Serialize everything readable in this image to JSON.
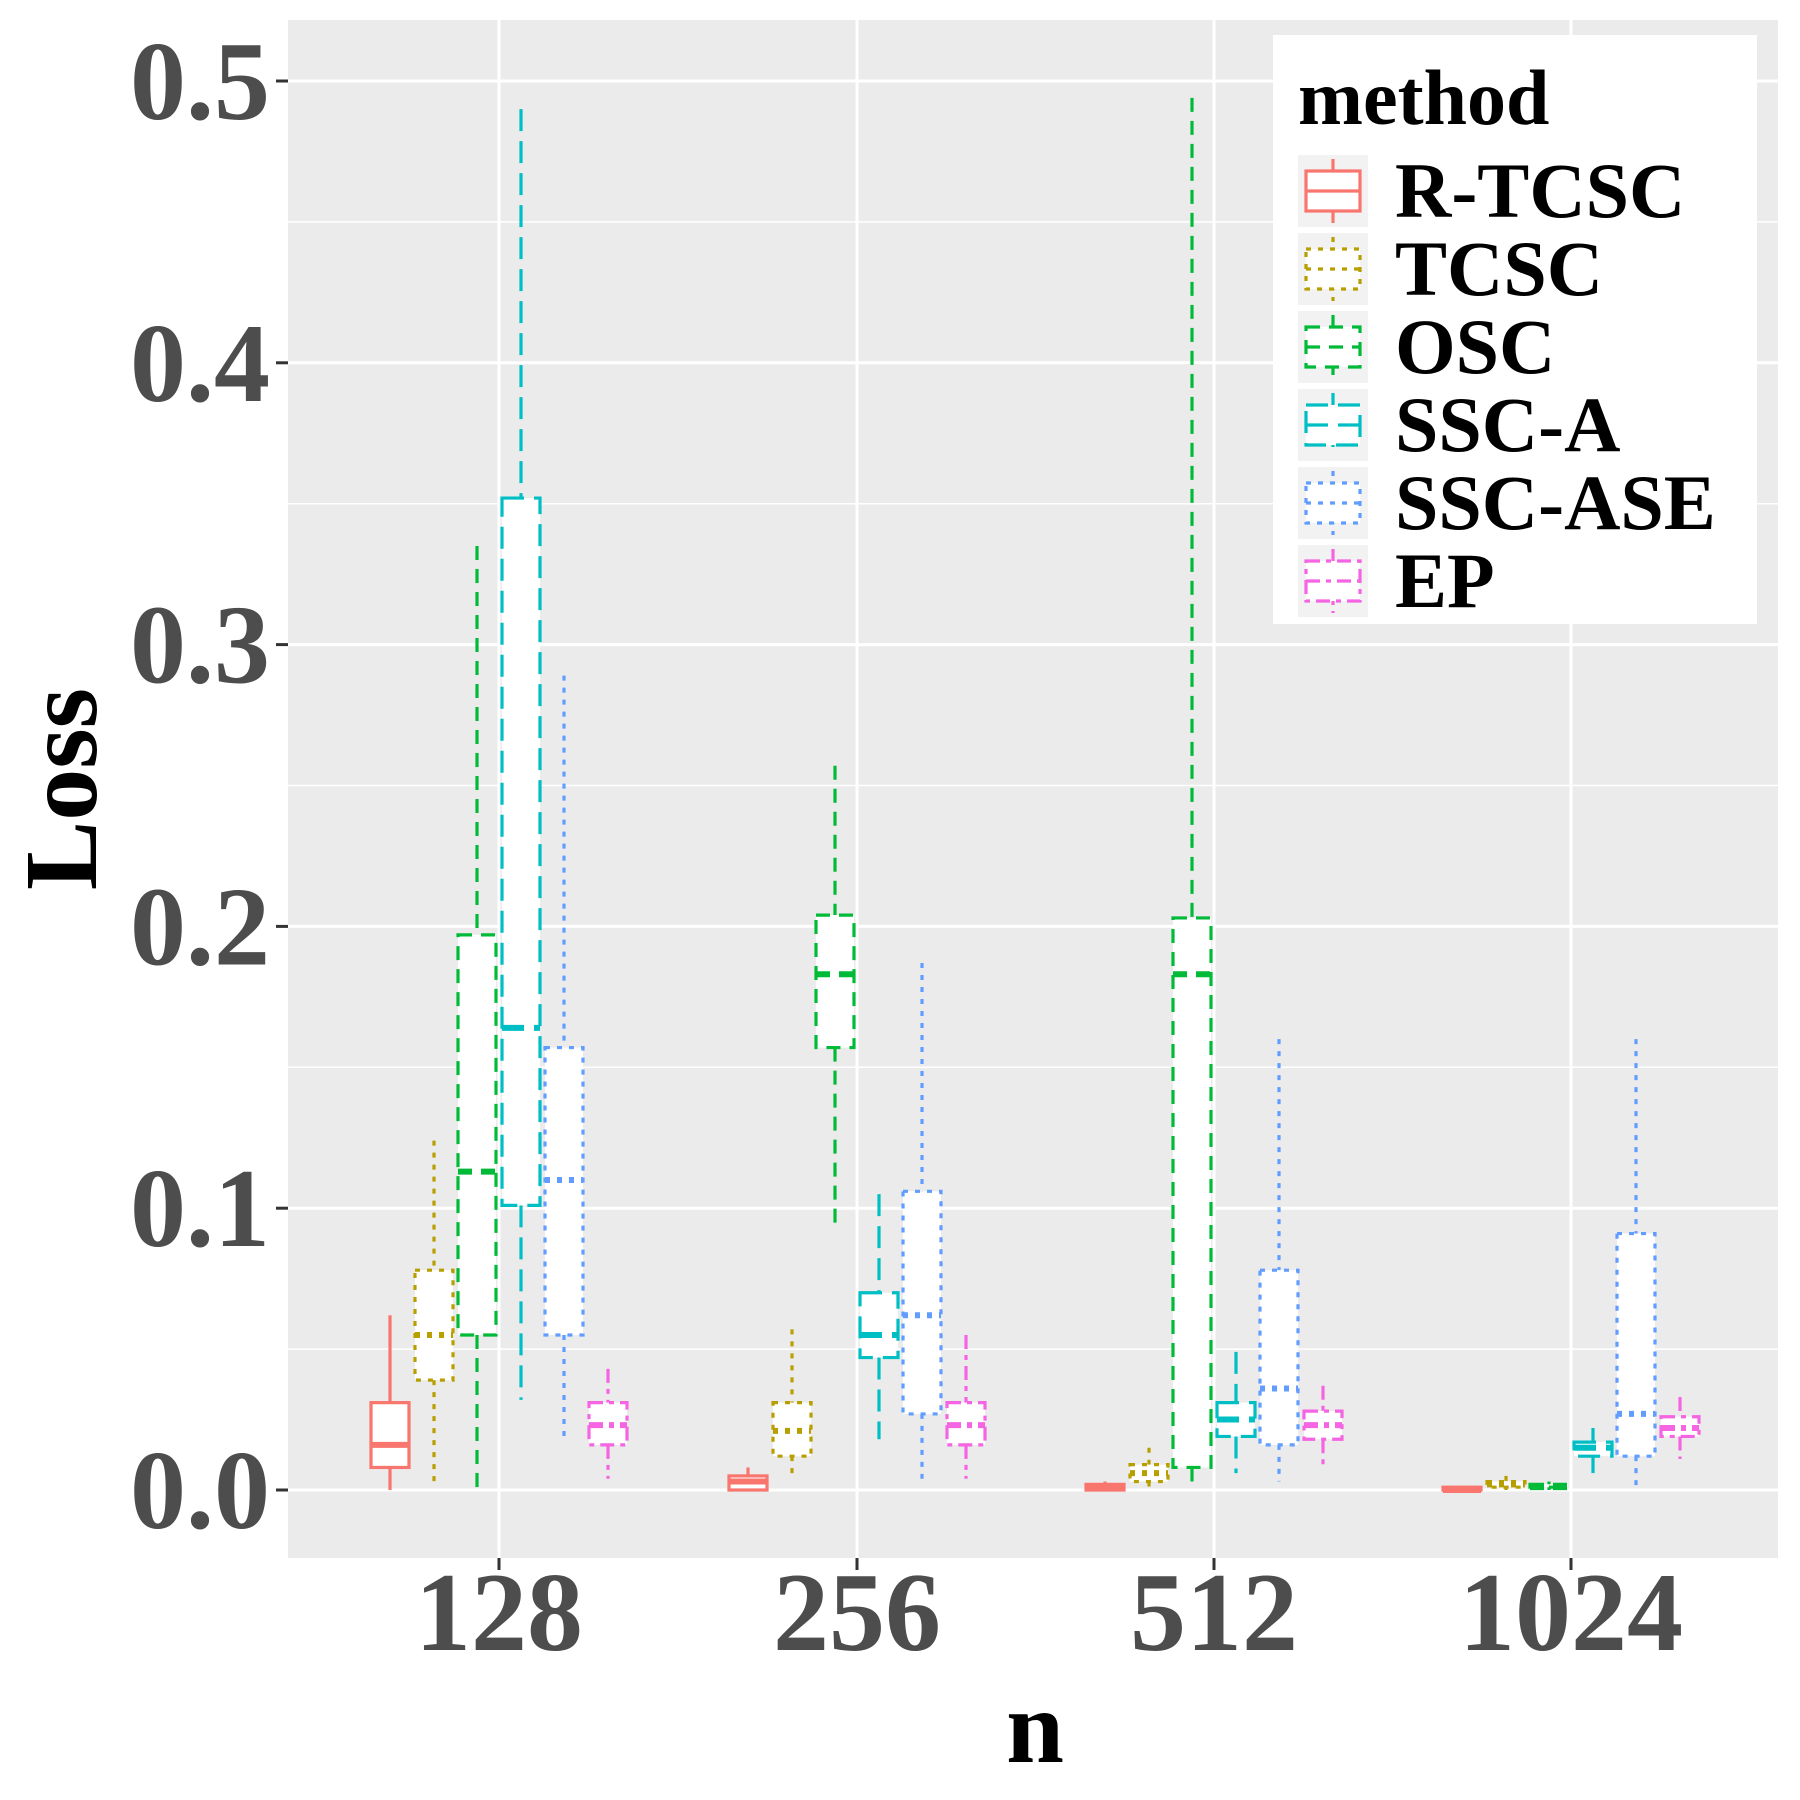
{
  "chart_data": {
    "type": "boxplot",
    "title": "",
    "xlabel": "n",
    "ylabel": "Loss",
    "categories": [
      "128",
      "256",
      "512",
      "1024"
    ],
    "ylim": [
      -0.023,
      0.52
    ],
    "yticks": [
      "0.0",
      "0.1",
      "0.2",
      "0.3",
      "0.4",
      "0.5"
    ],
    "ytick_values": [
      0.0,
      0.1,
      0.2,
      0.3,
      0.4,
      0.5
    ],
    "grid": true,
    "legend": {
      "title": "method",
      "position": "top-right"
    },
    "series": [
      {
        "name": "R-TCSC",
        "color": "#F8766D",
        "linetype": "solid",
        "boxes": [
          {
            "min": 0.0,
            "q1": 0.008,
            "median": 0.016,
            "q3": 0.031,
            "max": 0.062
          },
          {
            "min": 0.0,
            "q1": 0.0,
            "median": 0.003,
            "q3": 0.005,
            "max": 0.008
          },
          {
            "min": 0.0,
            "q1": 0.0,
            "median": 0.001,
            "q3": 0.002,
            "max": 0.003
          },
          {
            "min": 0.0,
            "q1": 0.0,
            "median": 0.0,
            "q3": 0.001,
            "max": 0.001
          }
        ]
      },
      {
        "name": "TCSC",
        "color": "#B79F00",
        "linetype": "dotted",
        "boxes": [
          {
            "min": 0.002,
            "q1": 0.039,
            "median": 0.055,
            "q3": 0.078,
            "max": 0.124
          },
          {
            "min": 0.004,
            "q1": 0.012,
            "median": 0.021,
            "q3": 0.031,
            "max": 0.057
          },
          {
            "min": 0.001,
            "q1": 0.003,
            "median": 0.006,
            "q3": 0.009,
            "max": 0.015
          },
          {
            "min": 0.0,
            "q1": 0.001,
            "median": 0.002,
            "q3": 0.003,
            "max": 0.005
          }
        ]
      },
      {
        "name": "OSC",
        "color": "#00BA38",
        "linetype": "dashed",
        "boxes": [
          {
            "min": 0.0,
            "q1": 0.055,
            "median": 0.113,
            "q3": 0.197,
            "max": 0.335
          },
          {
            "min": 0.094,
            "q1": 0.157,
            "median": 0.183,
            "q3": 0.204,
            "max": 0.257
          },
          {
            "min": 0.003,
            "q1": 0.008,
            "median": 0.183,
            "q3": 0.203,
            "max": 0.494
          },
          {
            "min": 0.0,
            "q1": 0.001,
            "median": 0.001,
            "q3": 0.002,
            "max": 0.003
          }
        ]
      },
      {
        "name": "SSC-A",
        "color": "#00BFC4",
        "linetype": "longdash",
        "boxes": [
          {
            "min": 0.032,
            "q1": 0.101,
            "median": 0.164,
            "q3": 0.352,
            "max": 0.49
          },
          {
            "min": 0.018,
            "q1": 0.047,
            "median": 0.055,
            "q3": 0.07,
            "max": 0.105
          },
          {
            "min": 0.006,
            "q1": 0.019,
            "median": 0.025,
            "q3": 0.031,
            "max": 0.049
          },
          {
            "min": 0.006,
            "q1": 0.012,
            "median": 0.015,
            "q3": 0.017,
            "max": 0.022
          }
        ]
      },
      {
        "name": "SSC-ASE",
        "color": "#619CFF",
        "linetype": "dotted",
        "boxes": [
          {
            "min": 0.019,
            "q1": 0.055,
            "median": 0.11,
            "q3": 0.157,
            "max": 0.289
          },
          {
            "min": 0.004,
            "q1": 0.027,
            "median": 0.062,
            "q3": 0.106,
            "max": 0.187
          },
          {
            "min": 0.003,
            "q1": 0.016,
            "median": 0.036,
            "q3": 0.078,
            "max": 0.16
          },
          {
            "min": 0.0,
            "q1": 0.012,
            "median": 0.027,
            "q3": 0.091,
            "max": 0.16
          }
        ]
      },
      {
        "name": "EP",
        "color": "#F564E3",
        "linetype": "twodash",
        "boxes": [
          {
            "min": 0.004,
            "q1": 0.016,
            "median": 0.023,
            "q3": 0.031,
            "max": 0.043
          },
          {
            "min": 0.004,
            "q1": 0.016,
            "median": 0.023,
            "q3": 0.031,
            "max": 0.055
          },
          {
            "min": 0.009,
            "q1": 0.018,
            "median": 0.023,
            "q3": 0.028,
            "max": 0.037
          },
          {
            "min": 0.011,
            "q1": 0.019,
            "median": 0.022,
            "q3": 0.026,
            "max": 0.033
          }
        ]
      }
    ]
  }
}
